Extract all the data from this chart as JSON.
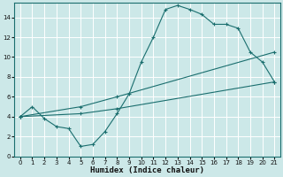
{
  "xlabel": "Humidex (Indice chaleur)",
  "xlim": [
    -0.5,
    21.5
  ],
  "ylim": [
    0,
    15.5
  ],
  "xticks": [
    0,
    1,
    2,
    3,
    4,
    5,
    6,
    7,
    8,
    9,
    10,
    11,
    12,
    13,
    14,
    15,
    16,
    17,
    18,
    19,
    20,
    21
  ],
  "yticks": [
    0,
    2,
    4,
    6,
    8,
    10,
    12,
    14
  ],
  "background_color": "#cce8e8",
  "grid_color": "#ffffff",
  "line_color": "#1a6e6e",
  "line1": {
    "x": [
      0,
      1,
      2,
      3,
      4,
      5,
      6,
      7,
      8,
      9,
      10,
      11,
      12,
      13,
      14,
      15,
      16,
      17,
      18,
      19,
      20,
      21
    ],
    "y": [
      4.0,
      5.0,
      3.8,
      3.0,
      2.8,
      1.0,
      1.2,
      2.5,
      4.3,
      6.3,
      9.5,
      12.0,
      14.8,
      15.2,
      14.8,
      14.3,
      13.3,
      13.3,
      12.9,
      10.5,
      9.5,
      7.5
    ]
  },
  "line2": {
    "x": [
      0,
      5,
      8,
      21
    ],
    "y": [
      4.0,
      4.3,
      4.8,
      7.5
    ]
  },
  "line3": {
    "x": [
      0,
      5,
      8,
      21
    ],
    "y": [
      4.0,
      5.0,
      6.0,
      10.5
    ]
  }
}
